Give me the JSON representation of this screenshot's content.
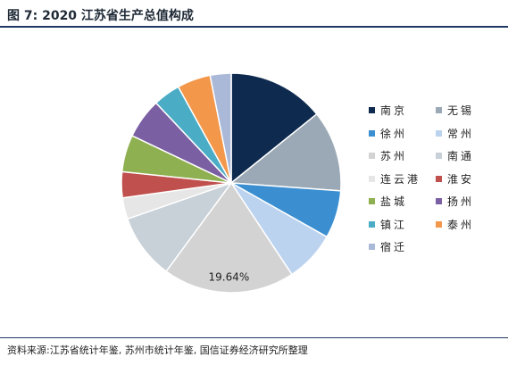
{
  "title": "图 7:  2020 江苏省生产总值构成",
  "source": "资料来源:江苏省统计年鉴, 苏州市统计年鉴, 国信证券经济研究所整理",
  "chart_data": {
    "type": "pie",
    "title": "图 7:  2020 江苏省生产总值构成",
    "categories": [
      "南京",
      "无锡",
      "徐州",
      "常州",
      "苏州",
      "南通",
      "连云港",
      "淮安",
      "盐城",
      "扬州",
      "镇江",
      "泰州",
      "宿迁"
    ],
    "values": [
      14.38,
      12.09,
      7.11,
      7.61,
      19.64,
      9.71,
      3.18,
      3.86,
      5.51,
      5.99,
      4.04,
      4.98,
      3.13
    ],
    "colors": [
      "#0e2a4f",
      "#9aa9b5",
      "#3b8fd1",
      "#bcd3ef",
      "#d3d3d3",
      "#c8d0d8",
      "#e6e6e6",
      "#c0504d",
      "#8fb050",
      "#7b5fa3",
      "#4bacc6",
      "#f3974b",
      "#aab9d8"
    ],
    "data_labels": [
      {
        "index": 4,
        "text": "19.64%"
      }
    ],
    "legend_position": "right"
  }
}
